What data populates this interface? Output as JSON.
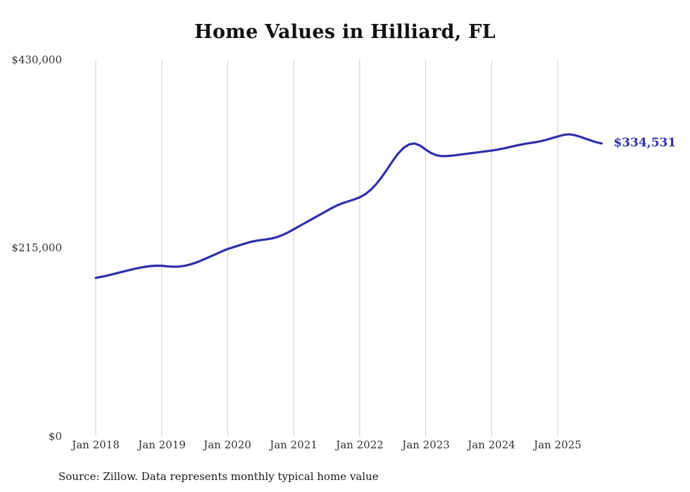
{
  "chart": {
    "title": "Home Values in Hilliard, FL",
    "source_note": "Source: Zillow. Data represents monthly typical home value",
    "end_label": "$334,531",
    "y_ticks": [
      "$430,000",
      "$215,000",
      "$0"
    ],
    "x_ticks": [
      "Jan 2018",
      "Jan 2019",
      "Jan 2020",
      "Jan 2021",
      "Jan 2022",
      "Jan 2023",
      "Jan 2024",
      "Jan 2025"
    ],
    "colors": {
      "line": "#302fae",
      "end_label": "#302fae",
      "grid": "#cccccc",
      "text": "#333333"
    }
  },
  "chart_data": {
    "type": "line",
    "title": "Home Values in Hilliard, FL",
    "xlabel": "",
    "ylabel": "",
    "ylim": [
      0,
      430000
    ],
    "yticks": [
      0,
      215000,
      430000
    ],
    "grid": "vertical-yearly",
    "legend": false,
    "series_name": "Typical home value (USD)",
    "latest": {
      "x": "2025-09",
      "value": 334531,
      "label": "$334,531"
    },
    "x": [
      "2018-01",
      "2018-02",
      "2018-03",
      "2018-04",
      "2018-05",
      "2018-06",
      "2018-07",
      "2018-08",
      "2018-09",
      "2018-10",
      "2018-11",
      "2018-12",
      "2019-01",
      "2019-02",
      "2019-03",
      "2019-04",
      "2019-05",
      "2019-06",
      "2019-07",
      "2019-08",
      "2019-09",
      "2019-10",
      "2019-11",
      "2019-12",
      "2020-01",
      "2020-02",
      "2020-03",
      "2020-04",
      "2020-05",
      "2020-06",
      "2020-07",
      "2020-08",
      "2020-09",
      "2020-10",
      "2020-11",
      "2020-12",
      "2021-01",
      "2021-02",
      "2021-03",
      "2021-04",
      "2021-05",
      "2021-06",
      "2021-07",
      "2021-08",
      "2021-09",
      "2021-10",
      "2021-11",
      "2021-12",
      "2022-01",
      "2022-02",
      "2022-03",
      "2022-04",
      "2022-05",
      "2022-06",
      "2022-07",
      "2022-08",
      "2022-09",
      "2022-10",
      "2022-11",
      "2022-12",
      "2023-01",
      "2023-02",
      "2023-03",
      "2023-04",
      "2023-05",
      "2023-06",
      "2023-07",
      "2023-08",
      "2023-09",
      "2023-10",
      "2023-11",
      "2023-12",
      "2024-01",
      "2024-02",
      "2024-03",
      "2024-04",
      "2024-05",
      "2024-06",
      "2024-07",
      "2024-08",
      "2024-09",
      "2024-10",
      "2024-11",
      "2024-12",
      "2025-01",
      "2025-02",
      "2025-03",
      "2025-04",
      "2025-05",
      "2025-06",
      "2025-07",
      "2025-08",
      "2025-09"
    ],
    "values": [
      181000,
      182200,
      183500,
      185000,
      186600,
      188200,
      189800,
      191300,
      192600,
      193700,
      194500,
      194900,
      194800,
      194200,
      193800,
      193900,
      194600,
      196000,
      198000,
      200400,
      203000,
      205800,
      208600,
      211400,
      214000,
      216000,
      218000,
      220000,
      221800,
      223200,
      224200,
      225000,
      226000,
      227600,
      230000,
      233000,
      236500,
      240000,
      243500,
      247000,
      250500,
      254000,
      257500,
      261000,
      264000,
      266500,
      268500,
      270500,
      273000,
      276500,
      281500,
      288000,
      296000,
      305000,
      314500,
      323000,
      329500,
      333500,
      334500,
      332000,
      327500,
      323500,
      321000,
      320000,
      320200,
      320800,
      321600,
      322400,
      323200,
      324000,
      324800,
      325600,
      326400,
      327400,
      328600,
      330000,
      331400,
      332800,
      334000,
      335000,
      336000,
      337200,
      338800,
      340600,
      342400,
      344200,
      345000,
      344200,
      342400,
      340200,
      338000,
      336000,
      334531
    ]
  }
}
